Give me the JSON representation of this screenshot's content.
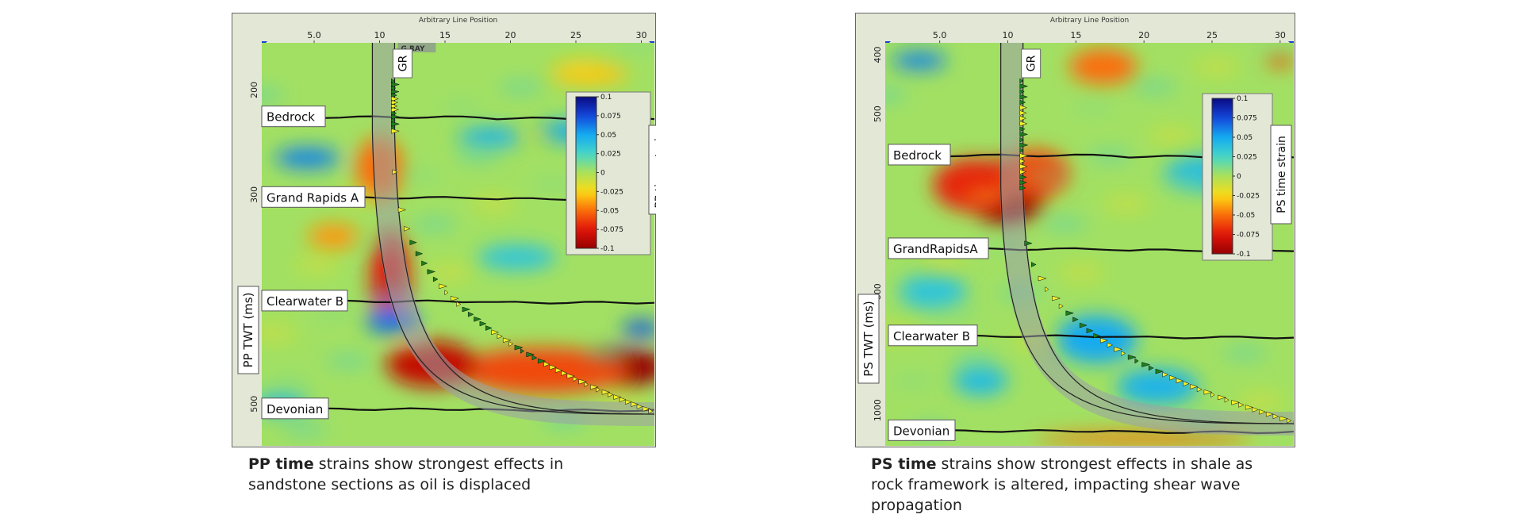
{
  "colors": {
    "frame_bg": "#e3e8d6",
    "frame_border": "#666666",
    "horizon_line": "#111111",
    "log_fill_pos": "#1e7d1e",
    "log_fill_neg": "#f2ee2a",
    "well_band": "#9aa0a8"
  },
  "chart_data": [
    {
      "type": "heatmap",
      "name_ref": "pp",
      "title": "Arbitrary Line Position",
      "x_ticks": [
        "5.0",
        "10",
        "15",
        "20",
        "25",
        "30"
      ],
      "x_tick_values": [
        5,
        10,
        15,
        20,
        25,
        30
      ],
      "xlim": [
        1,
        31
      ],
      "ylabel": "PP TWT (ms)",
      "y_ticks": [
        "200",
        "300",
        "500"
      ],
      "y_tick_values": [
        200,
        300,
        500
      ],
      "ylim": [
        155,
        540
      ],
      "well_label": "GR",
      "well_overlay_text": "G   RAY",
      "horizons": [
        {
          "label": "Bedrock",
          "y": 226
        },
        {
          "label": "Grand Rapids A",
          "y": 303
        },
        {
          "label": "Clearwater B",
          "y": 402
        },
        {
          "label": "Devonian",
          "y": 505
        }
      ],
      "colorbar": {
        "label": "PP time strain",
        "ticks": [
          "0.1",
          "0.075",
          "0.05",
          "0.025",
          "0",
          "-0.025",
          "-0.05",
          "-0.075",
          "-0.1"
        ],
        "range": [
          -0.1,
          0.1
        ]
      },
      "anomalies": [
        {
          "x": 28.5,
          "y": 465,
          "value": -0.1,
          "rx": 3.5,
          "ry": 18
        },
        {
          "x": 22.5,
          "y": 468,
          "value": -0.06,
          "rx": 6.5,
          "ry": 22
        },
        {
          "x": 14.0,
          "y": 462,
          "value": -0.085,
          "rx": 3.5,
          "ry": 22
        },
        {
          "x": 10.8,
          "y": 380,
          "value": -0.075,
          "rx": 1.5,
          "ry": 45
        },
        {
          "x": 10.0,
          "y": 275,
          "value": -0.05,
          "rx": 1.8,
          "ry": 30
        },
        {
          "x": 4.5,
          "y": 265,
          "value": 0.06,
          "rx": 2.5,
          "ry": 10
        },
        {
          "x": 18.5,
          "y": 245,
          "value": 0.045,
          "rx": 2.5,
          "ry": 9
        },
        {
          "x": 24.5,
          "y": 240,
          "value": 0.05,
          "rx": 2.5,
          "ry": 10
        },
        {
          "x": 11.0,
          "y": 420,
          "value": 0.065,
          "rx": 2.0,
          "ry": 14
        },
        {
          "x": 30.0,
          "y": 428,
          "value": 0.07,
          "rx": 1.5,
          "ry": 8
        },
        {
          "x": 6.5,
          "y": 340,
          "value": -0.04,
          "rx": 2.0,
          "ry": 12
        },
        {
          "x": 20.5,
          "y": 360,
          "value": 0.035,
          "rx": 3.0,
          "ry": 12
        },
        {
          "x": 2.5,
          "y": 500,
          "value": 0.04,
          "rx": 2.0,
          "ry": 10
        },
        {
          "x": 26.0,
          "y": 185,
          "value": -0.03,
          "rx": 3.0,
          "ry": 10
        }
      ]
    },
    {
      "type": "heatmap",
      "name_ref": "ps",
      "title": "Arbitrary Line Position",
      "x_ticks": [
        "5.0",
        "10",
        "15",
        "20",
        "25",
        "30"
      ],
      "x_tick_values": [
        5,
        10,
        15,
        20,
        25,
        30
      ],
      "xlim": [
        1,
        31
      ],
      "ylabel": "PS TWT (ms)",
      "y_ticks": [
        "400",
        "500",
        "800",
        "1000"
      ],
      "y_tick_values": [
        400,
        500,
        800,
        1000
      ],
      "ylim": [
        380,
        1060
      ],
      "well_label": "GR",
      "horizons": [
        {
          "label": "Bedrock",
          "y": 570
        },
        {
          "label": "GrandRapidsA",
          "y": 728
        },
        {
          "label": "Clearwater B",
          "y": 875
        },
        {
          "label": "Devonian",
          "y": 1035
        }
      ],
      "colorbar": {
        "label": "PS time strain",
        "ticks": [
          "0.1",
          "0.075",
          "0.05",
          "0.025",
          "0",
          "-0.025",
          "-0.05",
          "-0.075",
          "-0.1"
        ],
        "range": [
          -0.1,
          0.1
        ]
      },
      "anomalies": [
        {
          "x": 9.8,
          "y": 630,
          "value": -0.1,
          "rx": 3.0,
          "ry": 55
        },
        {
          "x": 7.5,
          "y": 620,
          "value": -0.07,
          "rx": 3.0,
          "ry": 45
        },
        {
          "x": 12.0,
          "y": 600,
          "value": -0.06,
          "rx": 2.5,
          "ry": 40
        },
        {
          "x": 17.0,
          "y": 420,
          "value": -0.05,
          "rx": 2.5,
          "ry": 30
        },
        {
          "x": 3.5,
          "y": 410,
          "value": 0.06,
          "rx": 2.0,
          "ry": 15
        },
        {
          "x": 25.0,
          "y": 600,
          "value": 0.04,
          "rx": 3.5,
          "ry": 30
        },
        {
          "x": 16.5,
          "y": 880,
          "value": 0.05,
          "rx": 3.0,
          "ry": 40
        },
        {
          "x": 21.0,
          "y": 960,
          "value": 0.045,
          "rx": 3.0,
          "ry": 30
        },
        {
          "x": 4.5,
          "y": 800,
          "value": 0.035,
          "rx": 2.5,
          "ry": 30
        },
        {
          "x": 30.0,
          "y": 410,
          "value": -0.06,
          "rx": 1.0,
          "ry": 10
        },
        {
          "x": 20.0,
          "y": 1048,
          "value": -0.05,
          "rx": 8.0,
          "ry": 10
        },
        {
          "x": 8.0,
          "y": 950,
          "value": 0.04,
          "rx": 2.0,
          "ry": 25
        }
      ]
    }
  ],
  "captions": [
    {
      "bold": "PP time",
      "rest": " strains show strongest effects in",
      "line2": "sandstone sections as oil is displaced",
      "line3": ""
    },
    {
      "bold": "PS time",
      "rest": " strains show strongest effects in shale as",
      "line2": "rock framework is altered, impacting shear wave",
      "line3": "propagation"
    }
  ]
}
